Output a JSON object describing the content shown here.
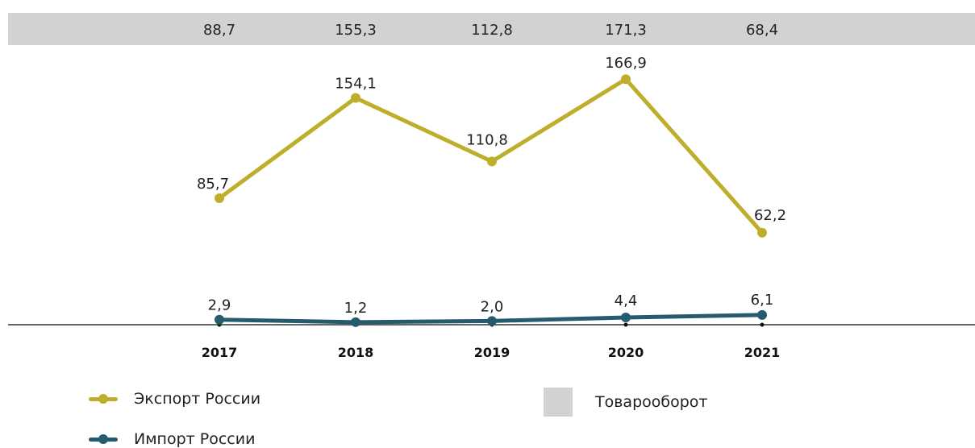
{
  "chart_data": {
    "type": "line",
    "title": "",
    "categories": [
      "2017",
      "2018",
      "2019",
      "2020",
      "2021"
    ],
    "turnover": {
      "name": "Товарооборот",
      "values": [
        88.7,
        155.3,
        112.8,
        171.3,
        68.4
      ],
      "labels": [
        "88,7",
        "155,3",
        "112,8",
        "171,3",
        "68,4"
      ],
      "color": "#d2d2d2"
    },
    "series": [
      {
        "name": "Экспорт России",
        "values": [
          85.7,
          154.1,
          110.8,
          166.9,
          62.2
        ],
        "labels": [
          "85,7",
          "154,1",
          "110,8",
          "166,9",
          "62,2"
        ],
        "color": "#bfad2c"
      },
      {
        "name": "Импорт России",
        "values": [
          2.9,
          1.2,
          2.0,
          4.4,
          6.1
        ],
        "labels": [
          "2,9",
          "1,2",
          "2,0",
          "4,4",
          "6,1"
        ],
        "color": "#255b6e"
      }
    ],
    "legend_position": "bottom",
    "grid": false
  }
}
